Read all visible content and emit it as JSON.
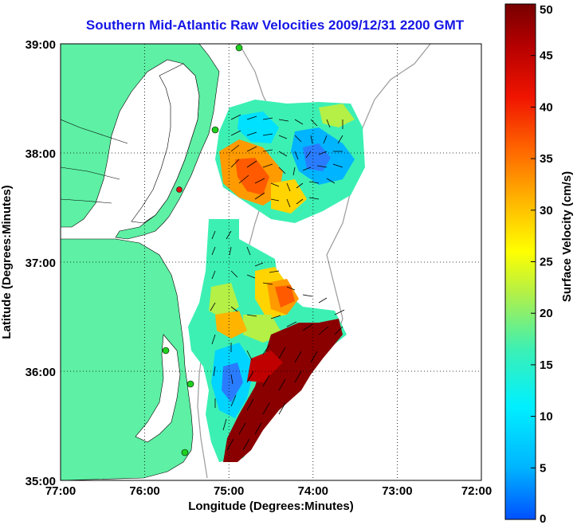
{
  "title": "Southern Mid-Atlantic Raw Velocities 2009/12/31 2200 GMT",
  "xlabel": "Longitude (Degrees:Minutes)",
  "ylabel": "Latitude (Degrees:Minutes)",
  "colorbar_label": "Surface Velocity (cm/s)",
  "x_ticks": [
    "77:00",
    "76:00",
    "75:00",
    "74:00",
    "73:00",
    "72:00"
  ],
  "y_ticks": [
    "39:00",
    "38:00",
    "37:00",
    "36:00",
    "35:00"
  ],
  "colorbar_ticks": [
    "0",
    "5",
    "10",
    "15",
    "20",
    "25",
    "30",
    "35",
    "40",
    "45",
    "50"
  ],
  "colors": {
    "title": "#1515e6",
    "land": "#5ef0a4",
    "water": "#ffffff",
    "grid": "#000000",
    "station_green": "#1fd11f",
    "station_red": "#e01010"
  },
  "colormap": [
    "#0050ff",
    "#00b4ff",
    "#00f0ff",
    "#3cf0b4",
    "#b4f046",
    "#ffff00",
    "#ffb400",
    "#ff6400",
    "#f01400",
    "#b40000",
    "#780000"
  ]
}
